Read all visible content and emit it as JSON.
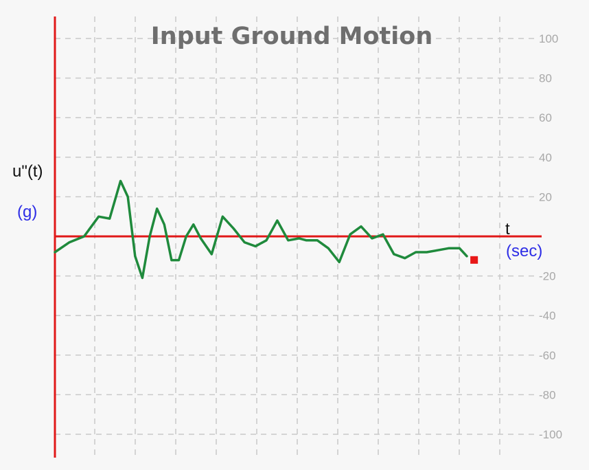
{
  "colors": {
    "background": "#f7f7f7",
    "grid": "#c9c9c9",
    "axis": "#e01818",
    "series": "#1f8a3c",
    "marker": "#e81818",
    "unit_label": "#2e2ee6",
    "title": "#6e6e6e",
    "tick_label": "#a8a8a8"
  },
  "chart_data": {
    "type": "line",
    "title": "Input Ground Motion",
    "ylabel": "u\"(t)",
    "ylabel_unit": "(g)",
    "xlabel": "t",
    "xlabel_unit": "(sec)",
    "grid": true,
    "ylim": [
      -110,
      110
    ],
    "xlim": [
      0,
      12
    ],
    "yticks": [
      100,
      80,
      60,
      40,
      20,
      -20,
      -40,
      -60,
      -80,
      -100
    ],
    "ytick_labels": [
      "100",
      "80",
      "60",
      "40",
      "20",
      "-20",
      "-40",
      "-60",
      "-80",
      "-100"
    ],
    "series": [
      {
        "x": [
          0.0,
          0.4,
          0.8,
          1.2,
          1.5,
          1.8,
          2.0,
          2.2,
          2.4,
          2.6,
          2.8,
          3.0,
          3.2,
          3.4,
          3.6,
          3.8,
          4.0,
          4.3,
          4.6,
          4.9,
          5.2,
          5.5,
          5.8,
          6.1,
          6.4,
          6.7,
          6.9,
          7.2,
          7.5,
          7.8,
          8.1,
          8.4,
          8.7,
          9.0,
          9.3,
          9.6,
          9.9,
          10.2,
          10.5,
          10.8,
          11.1,
          11.3
        ],
        "y": [
          -8,
          -3,
          0,
          10,
          9,
          28,
          20,
          -10,
          -21,
          0,
          14,
          6,
          -12,
          -12,
          0,
          6,
          -1,
          -9,
          10,
          4,
          -3,
          -5,
          -2,
          8,
          -2,
          -1,
          -2,
          -2,
          -6,
          -13,
          1,
          5,
          -1,
          1,
          -9,
          -11,
          -8,
          -8,
          -7,
          -6,
          -6,
          -10
        ]
      }
    ],
    "end_marker": {
      "x": 11.5,
      "y": -10
    }
  }
}
